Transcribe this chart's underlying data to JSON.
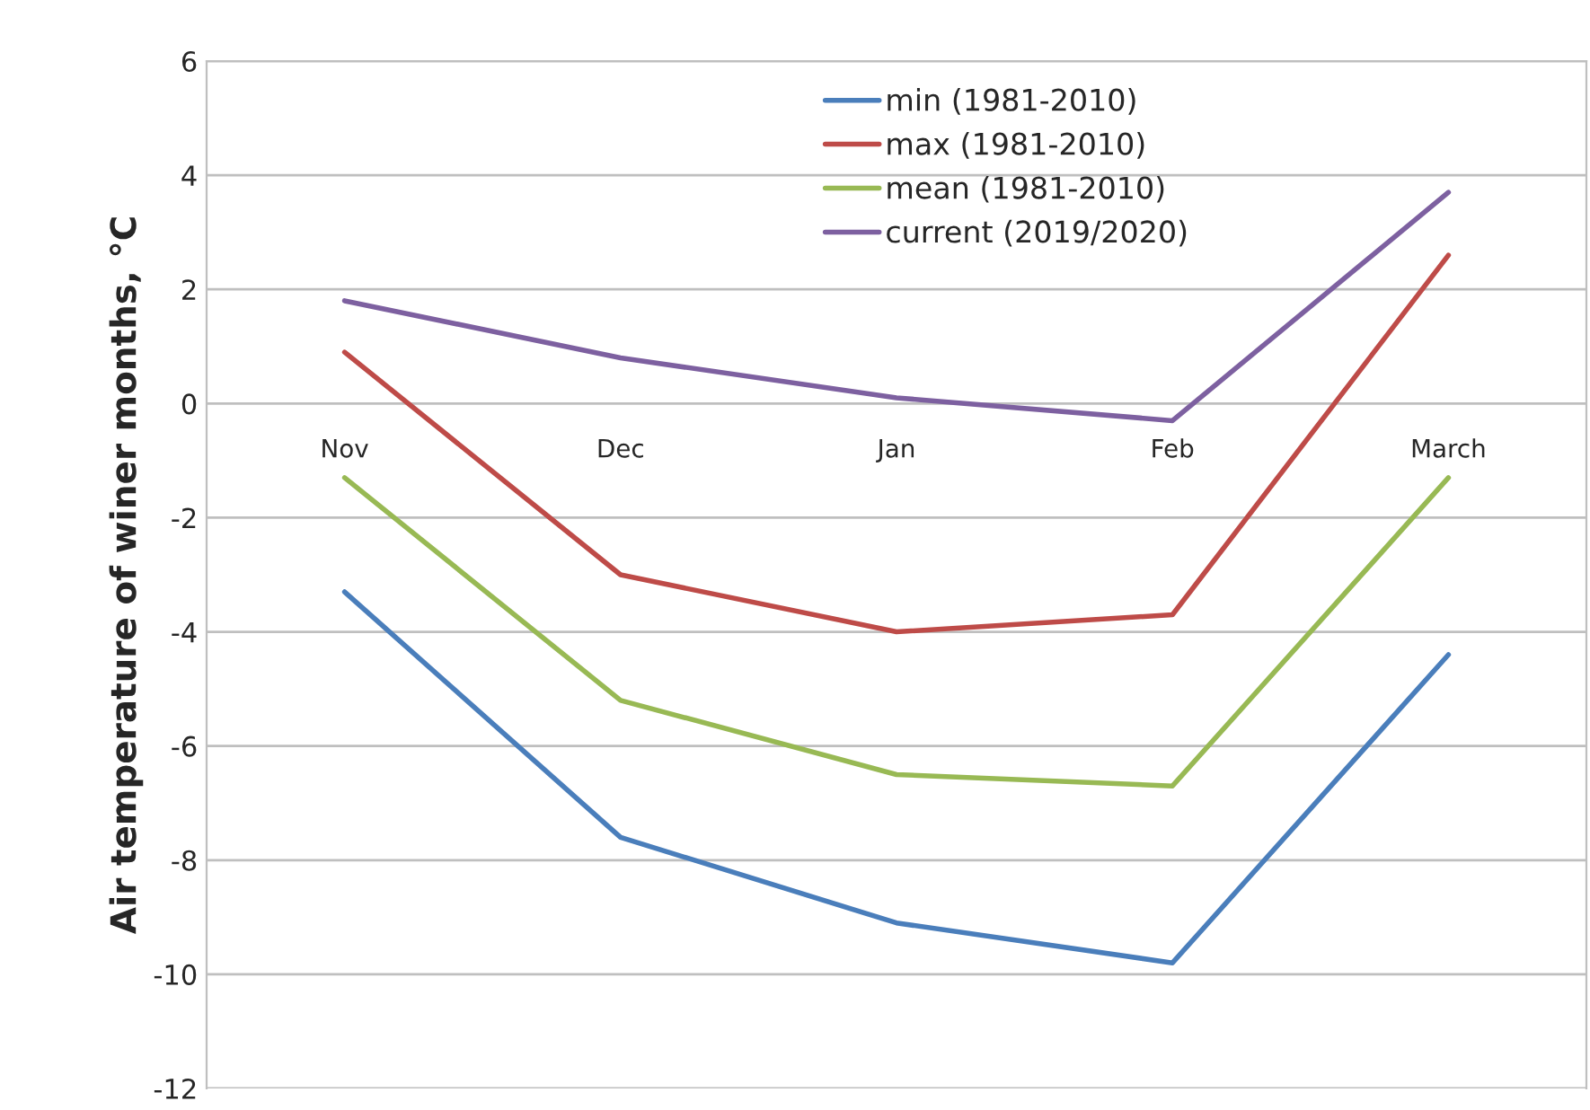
{
  "chart_data": {
    "type": "line",
    "ylabel": "Air temperature of winer months, °C",
    "categories": [
      "Nov",
      "Dec",
      "Jan",
      "Feb",
      "March"
    ],
    "series": [
      {
        "name": "min (1981-2010)",
        "color": "#4a7ebb",
        "values": [
          -3.3,
          -7.6,
          -9.1,
          -9.8,
          -4.4
        ]
      },
      {
        "name": "max (1981-2010)",
        "color": "#be4b48",
        "values": [
          0.9,
          -3.0,
          -4.0,
          -3.7,
          2.6
        ]
      },
      {
        "name": "mean (1981-2010)",
        "color": "#98b954",
        "values": [
          -1.3,
          -5.2,
          -6.5,
          -6.7,
          -1.3
        ]
      },
      {
        "name": "current (2019/2020)",
        "color": "#7d60a0",
        "values": [
          1.8,
          0.8,
          0.1,
          -0.3,
          3.7
        ]
      }
    ],
    "ylim": [
      -12,
      6
    ],
    "yticks": [
      -12,
      -10,
      -8,
      -6,
      -4,
      -2,
      0,
      2,
      4,
      6
    ],
    "grid": "y",
    "legend": "top",
    "marker": "none",
    "line_style": "solid"
  }
}
